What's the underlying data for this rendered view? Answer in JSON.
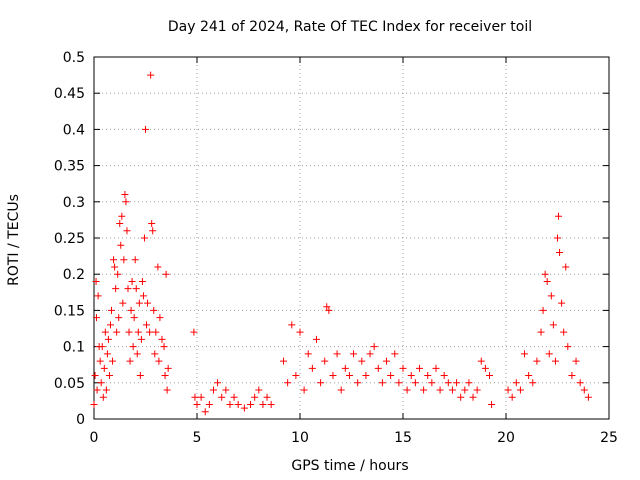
{
  "chart_data": {
    "type": "scatter",
    "title": "Day 241 of 2024, Rate Of TEC Index for receiver toil",
    "xlabel": "GPS time / hours",
    "ylabel": "ROTI / TECUs",
    "xlim": [
      0,
      25
    ],
    "ylim": [
      0,
      0.5
    ],
    "x_ticks": [
      0,
      5,
      10,
      15,
      20,
      25
    ],
    "x_tick_labels": [
      "0",
      "5",
      "10",
      "15",
      "20",
      "25"
    ],
    "y_ticks": [
      0,
      0.05,
      0.1,
      0.15,
      0.2,
      0.25,
      0.3,
      0.35,
      0.4,
      0.45,
      0.5
    ],
    "y_tick_labels": [
      "0",
      "0.05",
      "0.1",
      "0.15",
      "0.2",
      "0.25",
      "0.3",
      "0.35",
      "0.4",
      "0.45",
      "0.5"
    ],
    "grid": true,
    "marker": "+",
    "marker_color": "#ff0000",
    "series": [
      {
        "name": "ROTI",
        "points": [
          [
            0.0,
            0.02
          ],
          [
            0.05,
            0.06
          ],
          [
            0.1,
            0.19
          ],
          [
            0.12,
            0.14
          ],
          [
            0.15,
            0.04
          ],
          [
            0.2,
            0.17
          ],
          [
            0.25,
            0.1
          ],
          [
            0.3,
            0.08
          ],
          [
            0.35,
            0.05
          ],
          [
            0.4,
            0.1
          ],
          [
            0.45,
            0.03
          ],
          [
            0.5,
            0.07
          ],
          [
            0.55,
            0.12
          ],
          [
            0.6,
            0.04
          ],
          [
            0.65,
            0.09
          ],
          [
            0.7,
            0.11
          ],
          [
            0.75,
            0.06
          ],
          [
            0.8,
            0.13
          ],
          [
            0.85,
            0.15
          ],
          [
            0.9,
            0.08
          ],
          [
            0.95,
            0.22
          ],
          [
            1.0,
            0.21
          ],
          [
            1.05,
            0.18
          ],
          [
            1.1,
            0.12
          ],
          [
            1.15,
            0.2
          ],
          [
            1.2,
            0.14
          ],
          [
            1.25,
            0.27
          ],
          [
            1.3,
            0.24
          ],
          [
            1.35,
            0.28
          ],
          [
            1.4,
            0.16
          ],
          [
            1.45,
            0.22
          ],
          [
            1.5,
            0.31
          ],
          [
            1.55,
            0.3
          ],
          [
            1.6,
            0.26
          ],
          [
            1.65,
            0.18
          ],
          [
            1.7,
            0.12
          ],
          [
            1.75,
            0.08
          ],
          [
            1.8,
            0.15
          ],
          [
            1.85,
            0.19
          ],
          [
            1.9,
            0.1
          ],
          [
            1.95,
            0.14
          ],
          [
            2.0,
            0.22
          ],
          [
            2.05,
            0.18
          ],
          [
            2.1,
            0.09
          ],
          [
            2.15,
            0.12
          ],
          [
            2.2,
            0.16
          ],
          [
            2.25,
            0.06
          ],
          [
            2.3,
            0.11
          ],
          [
            2.35,
            0.19
          ],
          [
            2.4,
            0.17
          ],
          [
            2.45,
            0.25
          ],
          [
            2.5,
            0.4
          ],
          [
            2.55,
            0.13
          ],
          [
            2.6,
            0.16
          ],
          [
            2.7,
            0.12
          ],
          [
            2.75,
            0.475
          ],
          [
            2.8,
            0.27
          ],
          [
            2.85,
            0.26
          ],
          [
            2.9,
            0.15
          ],
          [
            2.95,
            0.09
          ],
          [
            3.0,
            0.12
          ],
          [
            3.1,
            0.21
          ],
          [
            3.15,
            0.08
          ],
          [
            3.2,
            0.14
          ],
          [
            3.3,
            0.11
          ],
          [
            3.4,
            0.1
          ],
          [
            3.45,
            0.06
          ],
          [
            3.5,
            0.2
          ],
          [
            3.55,
            0.04
          ],
          [
            3.6,
            0.07
          ],
          [
            4.85,
            0.12
          ],
          [
            4.9,
            0.03
          ],
          [
            5.0,
            0.02
          ],
          [
            5.2,
            0.03
          ],
          [
            5.4,
            0.01
          ],
          [
            5.6,
            0.02
          ],
          [
            5.8,
            0.04
          ],
          [
            6.0,
            0.05
          ],
          [
            6.2,
            0.03
          ],
          [
            6.4,
            0.04
          ],
          [
            6.6,
            0.02
          ],
          [
            6.8,
            0.03
          ],
          [
            7.0,
            0.02
          ],
          [
            7.3,
            0.015
          ],
          [
            7.6,
            0.02
          ],
          [
            7.8,
            0.03
          ],
          [
            8.0,
            0.04
          ],
          [
            8.2,
            0.02
          ],
          [
            8.4,
            0.03
          ],
          [
            8.6,
            0.02
          ],
          [
            9.2,
            0.08
          ],
          [
            9.4,
            0.05
          ],
          [
            9.6,
            0.13
          ],
          [
            9.8,
            0.06
          ],
          [
            10.0,
            0.12
          ],
          [
            10.2,
            0.04
          ],
          [
            10.4,
            0.09
          ],
          [
            10.6,
            0.07
          ],
          [
            10.8,
            0.11
          ],
          [
            11.0,
            0.05
          ],
          [
            11.2,
            0.08
          ],
          [
            11.3,
            0.155
          ],
          [
            11.4,
            0.15
          ],
          [
            11.6,
            0.06
          ],
          [
            11.8,
            0.09
          ],
          [
            12.0,
            0.04
          ],
          [
            12.2,
            0.07
          ],
          [
            12.4,
            0.06
          ],
          [
            12.6,
            0.09
          ],
          [
            12.8,
            0.05
          ],
          [
            13.0,
            0.08
          ],
          [
            13.2,
            0.06
          ],
          [
            13.4,
            0.09
          ],
          [
            13.6,
            0.1
          ],
          [
            13.8,
            0.07
          ],
          [
            14.0,
            0.05
          ],
          [
            14.2,
            0.08
          ],
          [
            14.4,
            0.06
          ],
          [
            14.6,
            0.09
          ],
          [
            14.8,
            0.05
          ],
          [
            15.0,
            0.07
          ],
          [
            15.2,
            0.04
          ],
          [
            15.4,
            0.06
          ],
          [
            15.6,
            0.05
          ],
          [
            15.8,
            0.07
          ],
          [
            16.0,
            0.04
          ],
          [
            16.2,
            0.06
          ],
          [
            16.4,
            0.05
          ],
          [
            16.6,
            0.07
          ],
          [
            16.8,
            0.04
          ],
          [
            17.0,
            0.06
          ],
          [
            17.2,
            0.05
          ],
          [
            17.4,
            0.04
          ],
          [
            17.6,
            0.05
          ],
          [
            17.8,
            0.03
          ],
          [
            18.0,
            0.04
          ],
          [
            18.2,
            0.05
          ],
          [
            18.4,
            0.03
          ],
          [
            18.6,
            0.04
          ],
          [
            18.8,
            0.08
          ],
          [
            19.0,
            0.07
          ],
          [
            19.2,
            0.06
          ],
          [
            19.3,
            0.02
          ],
          [
            20.1,
            0.04
          ],
          [
            20.3,
            0.03
          ],
          [
            20.5,
            0.05
          ],
          [
            20.7,
            0.04
          ],
          [
            20.9,
            0.09
          ],
          [
            21.1,
            0.06
          ],
          [
            21.3,
            0.05
          ],
          [
            21.5,
            0.08
          ],
          [
            21.7,
            0.12
          ],
          [
            21.8,
            0.15
          ],
          [
            21.9,
            0.2
          ],
          [
            22.0,
            0.19
          ],
          [
            22.1,
            0.09
          ],
          [
            22.2,
            0.17
          ],
          [
            22.3,
            0.13
          ],
          [
            22.4,
            0.08
          ],
          [
            22.5,
            0.25
          ],
          [
            22.55,
            0.28
          ],
          [
            22.6,
            0.23
          ],
          [
            22.7,
            0.16
          ],
          [
            22.8,
            0.12
          ],
          [
            22.9,
            0.21
          ],
          [
            23.0,
            0.1
          ],
          [
            23.2,
            0.06
          ],
          [
            23.4,
            0.08
          ],
          [
            23.6,
            0.05
          ],
          [
            23.8,
            0.04
          ],
          [
            24.0,
            0.03
          ]
        ]
      }
    ]
  }
}
